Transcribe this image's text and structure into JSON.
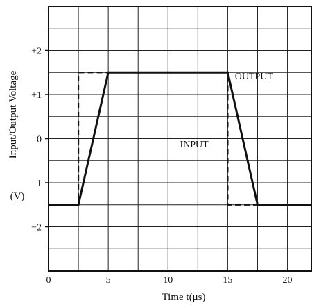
{
  "chart_data": {
    "type": "line",
    "xlabel": "Time  t(μs)",
    "ylabel": "Input/Output Voltage",
    "yunit": "(V)",
    "xlim": [
      0,
      22
    ],
    "ylim": [
      -3,
      3
    ],
    "grid": true,
    "x_ticks": [
      0,
      5,
      10,
      15,
      20
    ],
    "x_tick_labels": [
      "0",
      "5",
      "10",
      "15",
      "20"
    ],
    "y_ticks": [
      2,
      1,
      0,
      -1,
      -2
    ],
    "y_tick_labels": [
      "+2",
      "+1",
      "0",
      "−1",
      "−2"
    ],
    "series": [
      {
        "name": "INPUT",
        "style": "dashed",
        "color": "#111111",
        "x": [
          0,
          2.5,
          2.5,
          15,
          15,
          22
        ],
        "y": [
          -1.5,
          -1.5,
          1.5,
          1.5,
          -1.5,
          -1.5
        ]
      },
      {
        "name": "OUTPUT",
        "style": "solid",
        "color": "#111111",
        "x": [
          0,
          2.5,
          5,
          15,
          17.5,
          22
        ],
        "y": [
          -1.5,
          -1.5,
          1.5,
          1.5,
          -1.5,
          -1.5
        ]
      }
    ],
    "annotations": [
      {
        "text": "OUTPUT",
        "x": 15.6,
        "y": 1.35
      },
      {
        "text": "INPUT",
        "x": 11.0,
        "y": -0.2
      }
    ]
  }
}
